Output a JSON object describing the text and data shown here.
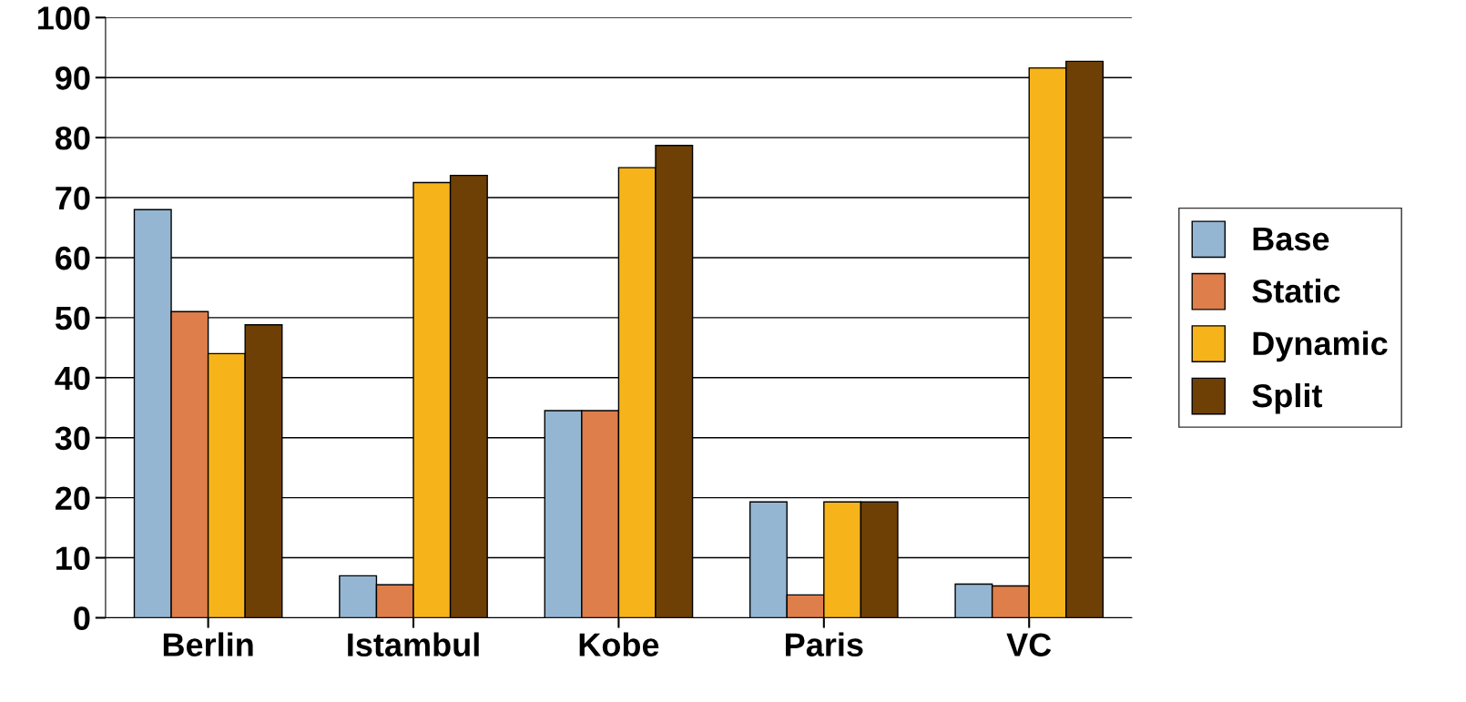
{
  "chart_data": {
    "type": "bar",
    "categories": [
      "Berlin",
      "Istambul",
      "Kobe",
      "Paris",
      "VC"
    ],
    "series": [
      {
        "name": "Base",
        "color": "#94b6d2",
        "values": [
          68,
          7,
          34.5,
          19.3,
          5.6
        ]
      },
      {
        "name": "Static",
        "color": "#dd7e4b",
        "values": [
          51,
          5.5,
          34.5,
          3.8,
          5.3
        ]
      },
      {
        "name": "Dynamic",
        "color": "#f6b41a",
        "values": [
          44,
          72.5,
          75,
          19.3,
          91.6
        ]
      },
      {
        "name": "Split",
        "color": "#6e4006",
        "values": [
          48.8,
          73.7,
          78.7,
          19.3,
          92.7
        ]
      }
    ],
    "ylim": [
      0,
      100
    ],
    "yticks": [
      0,
      10,
      20,
      30,
      40,
      50,
      60,
      70,
      80,
      90,
      100
    ],
    "grid": "y",
    "legend": "right"
  }
}
